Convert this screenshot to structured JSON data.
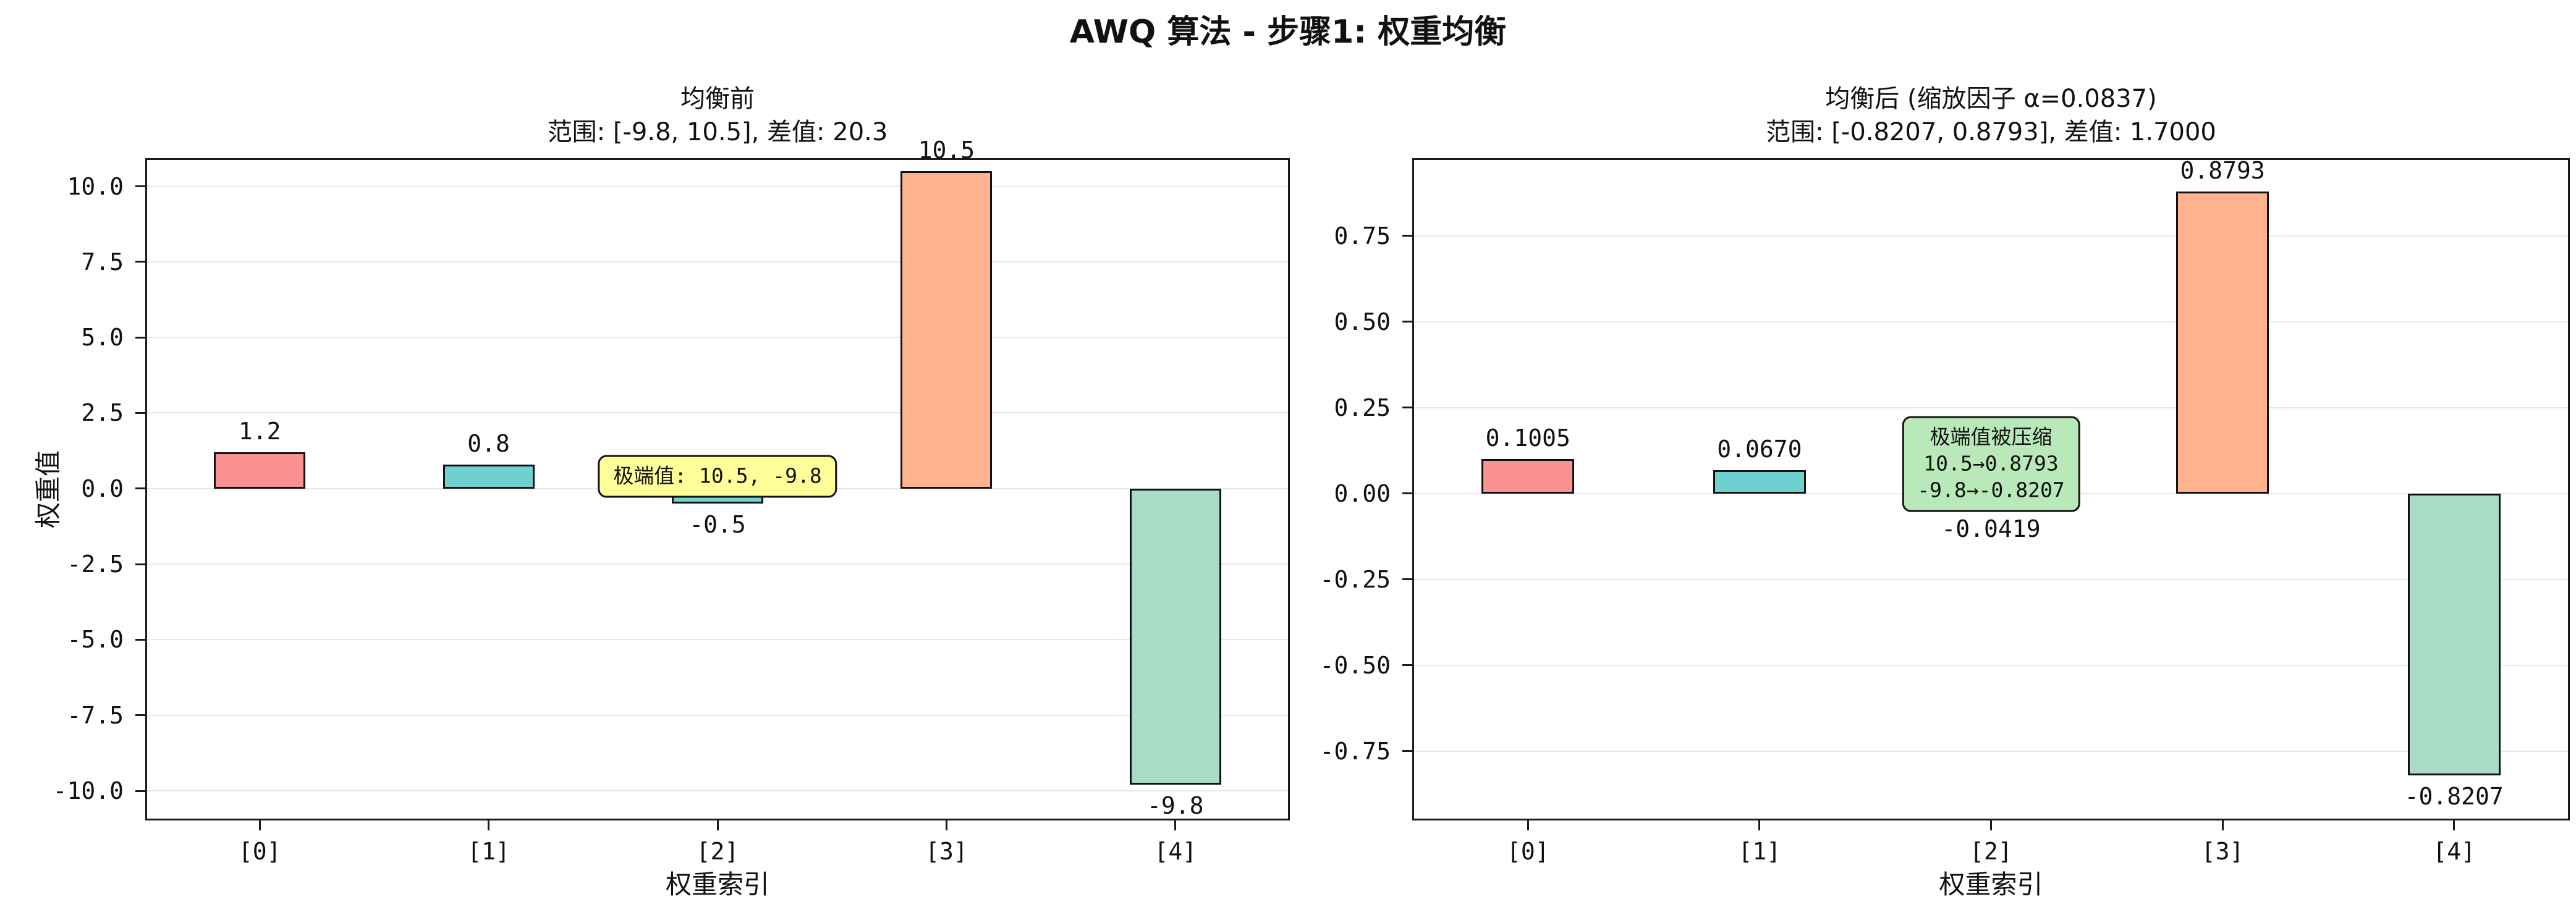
{
  "figure": {
    "title": "AWQ 算法 - 步骤1: 权重均衡"
  },
  "chart_data": [
    {
      "type": "bar",
      "title": "均衡前",
      "subtitle": "范围: [-9.8, 10.5], 差值: 20.3",
      "xlabel": "权重索引",
      "ylabel": "权重值",
      "categories": [
        "[0]",
        "[1]",
        "[2]",
        "[3]",
        "[4]"
      ],
      "values": [
        1.2,
        0.8,
        -0.5,
        10.5,
        -9.8
      ],
      "value_labels": [
        "1.2",
        "0.8",
        "-0.5",
        "10.5",
        "-9.8"
      ],
      "bar_colors": [
        "#fa9191",
        "#6fd1cf",
        "#6fd1cf",
        "#ffb48f",
        "#a8dcc6"
      ],
      "ylim": [
        -10.98,
        10.93
      ],
      "yticks": [
        {
          "value": 10.0,
          "label": "10.0"
        },
        {
          "value": 7.5,
          "label": "7.5"
        },
        {
          "value": 5.0,
          "label": "5.0"
        },
        {
          "value": 2.5,
          "label": "2.5"
        },
        {
          "value": 0.0,
          "label": "0.0"
        },
        {
          "value": -2.5,
          "label": "-2.5"
        },
        {
          "value": -5.0,
          "label": "-5.0"
        },
        {
          "value": -7.5,
          "label": "-7.5"
        },
        {
          "value": -10.0,
          "label": "-10.0"
        }
      ],
      "grid": true,
      "legend": "none",
      "annotation": {
        "lines": [
          "极端值: 10.5, -9.8"
        ],
        "bg_color": "#ffff99",
        "x_index": 2,
        "y_value": 0.4
      }
    },
    {
      "type": "bar",
      "title": "均衡后 (缩放因子 α=0.0837)",
      "subtitle": "范围: [-0.8207, 0.8793], 差值: 1.7000",
      "xlabel": "权重索引",
      "ylabel": "",
      "categories": [
        "[0]",
        "[1]",
        "[2]",
        "[3]",
        "[4]"
      ],
      "values": [
        0.1005,
        0.067,
        -0.0419,
        0.8793,
        -0.8207
      ],
      "value_labels": [
        "0.1005",
        "0.0670",
        "-0.0419",
        "0.8793",
        "-0.8207"
      ],
      "bar_colors": [
        "#fa9191",
        "#6fd1cf",
        "#6fd1cf",
        "#ffb48f",
        "#a8dcc6"
      ],
      "ylim": [
        -0.952,
        0.976
      ],
      "yticks": [
        {
          "value": 0.75,
          "label": "0.75"
        },
        {
          "value": 0.5,
          "label": "0.50"
        },
        {
          "value": 0.25,
          "label": "0.25"
        },
        {
          "value": 0.0,
          "label": "0.00"
        },
        {
          "value": -0.25,
          "label": "-0.25"
        },
        {
          "value": -0.5,
          "label": "-0.50"
        },
        {
          "value": -0.75,
          "label": "-0.75"
        }
      ],
      "grid": true,
      "legend": "none",
      "annotation": {
        "lines": [
          "极端值被压缩",
          "10.5→0.8793",
          "-9.8→-0.8207"
        ],
        "bg_color": "#b9e8b9",
        "x_index": 2,
        "y_value": 0.085
      }
    }
  ]
}
